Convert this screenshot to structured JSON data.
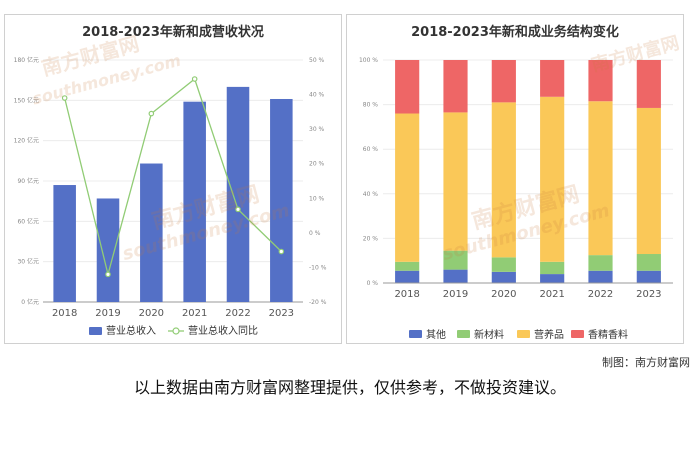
{
  "charts": [
    {
      "type": "bar",
      "title": "2018-2023年新和成营收状况",
      "categories": [
        "2018",
        "2019",
        "2020",
        "2021",
        "2022",
        "2023"
      ],
      "left_axis": {
        "ticks": [
          "0 亿元",
          "30 亿元",
          "60 亿元",
          "90 亿元",
          "120 亿元",
          "150 亿元",
          "180 亿元"
        ],
        "min": 0,
        "max": 180
      },
      "right_axis": {
        "ticks": [
          "-20 %",
          "-10 %",
          "0 %",
          "10 %",
          "20 %",
          "30 %",
          "40 %",
          "50 %"
        ],
        "min": -20,
        "max": 50
      },
      "series": [
        {
          "name": "营业总收入",
          "type": "bar",
          "color": "#5470c6",
          "values": [
            87,
            77,
            103,
            149,
            160,
            151
          ]
        },
        {
          "name": "营业总收入同比",
          "type": "line",
          "color": "#91cc75",
          "values": [
            39,
            -12,
            34.5,
            44.5,
            6.8,
            -5.4
          ]
        }
      ]
    },
    {
      "type": "bar",
      "stacked": true,
      "title": "2018-2023年新和成业务结构变化",
      "categories": [
        "2018",
        "2019",
        "2020",
        "2021",
        "2022",
        "2023"
      ],
      "y_axis": {
        "ticks": [
          "0 %",
          "20 %",
          "40 %",
          "60 %",
          "80 %",
          "100 %"
        ],
        "min": 0,
        "max": 100
      },
      "series": [
        {
          "name": "其他",
          "color": "#5470c6",
          "values": [
            5.5,
            6,
            5,
            4,
            5.5,
            5.5
          ]
        },
        {
          "name": "新材料",
          "color": "#91cc75",
          "values": [
            4,
            8.5,
            6.5,
            5.5,
            7,
            7.5
          ]
        },
        {
          "name": "营养品",
          "color": "#fac858",
          "values": [
            66.5,
            62,
            69.5,
            74,
            69,
            65.5
          ]
        },
        {
          "name": "香精香料",
          "color": "#ee6666",
          "values": [
            24,
            23.5,
            19,
            16.5,
            18.5,
            21.5
          ]
        }
      ]
    }
  ],
  "credit": "制图：南方财富网",
  "disclaimer": "以上数据由南方财富网整理提供，仅供参考，不做投资建议。",
  "watermark": {
    "text_cn": "南方财富网",
    "text_en": "southmoney.com"
  }
}
